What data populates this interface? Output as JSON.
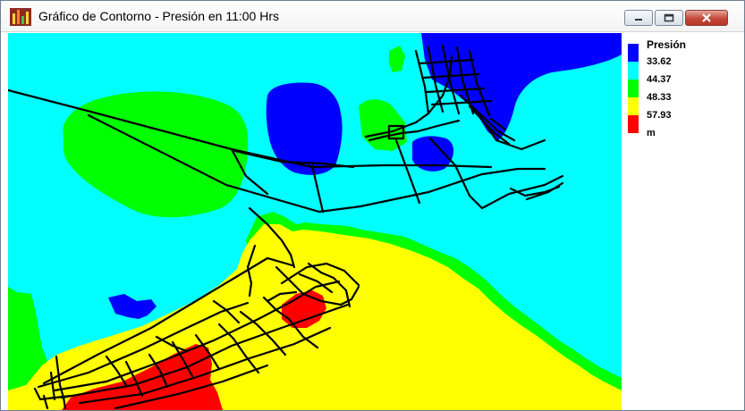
{
  "window": {
    "title": "Gráfico de Contorno - Presión en 11:00 Hrs",
    "app_icon": "contour-chart-icon",
    "controls": [
      "minimize-icon",
      "maximize-icon",
      "close-icon"
    ]
  },
  "legend": {
    "title": "Presión",
    "labels": [
      "33.62",
      "44.37",
      "48.33",
      "57.93",
      "m"
    ],
    "colors": [
      "#0000ff",
      "#00ffff",
      "#00ff00",
      "#ffff00",
      "#ff0000"
    ]
  },
  "colors": {
    "background": "#00ffff",
    "blue": "#0000ff",
    "cyan": "#00ffff",
    "green": "#00ff00",
    "yellow": "#ffff00",
    "red": "#ff0000",
    "pipes": "#000000"
  }
}
